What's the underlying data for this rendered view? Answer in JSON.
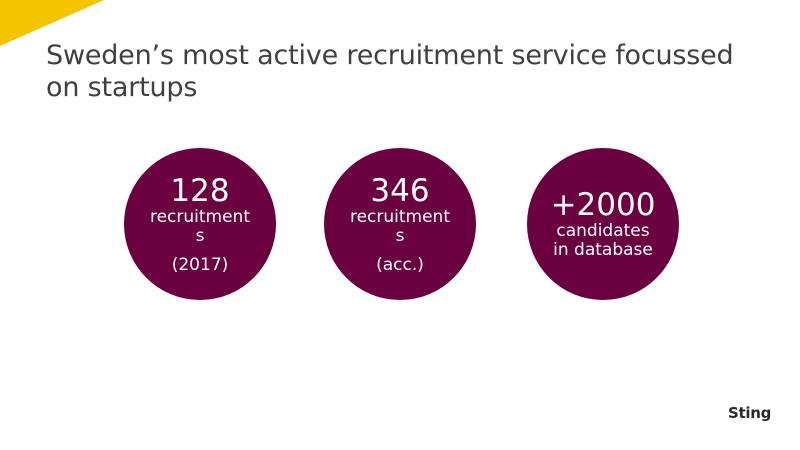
{
  "slide": {
    "title": "Sweden’s most active recruitment service focussed on startups",
    "accent_color": "#f5c400",
    "circle_color": "#6b0040"
  },
  "stats": [
    {
      "number": "128",
      "description": "recruitments",
      "note": "(2017)"
    },
    {
      "number": "346",
      "description": "recruitments",
      "note": "(acc.)"
    },
    {
      "number": "+2000",
      "description": "candidates in database",
      "note": ""
    }
  ],
  "logo": {
    "text": "Sting"
  }
}
